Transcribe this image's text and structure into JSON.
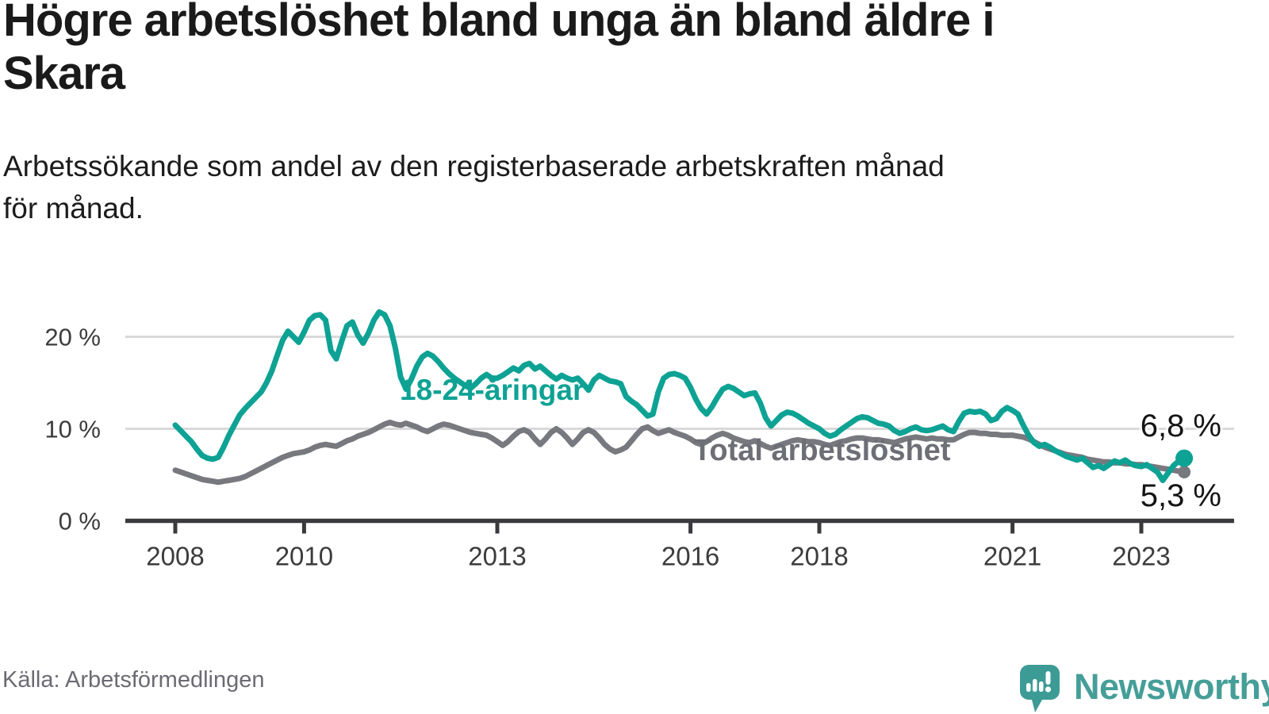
{
  "header": {
    "title": "Högre arbetslöshet bland unga än bland äldre i Skara",
    "title_lines": [
      "Högre arbetslöshet bland unga än bland äldre i",
      "Skara"
    ],
    "subtitle": "Arbetssökande som andel av den registerbaserade arbetskraften månad för månad.",
    "subtitle_lines": [
      "Arbetssökande som andel av den registerbaserade arbetskraften månad",
      "för månad."
    ]
  },
  "footer": {
    "source": "Källa: Arbetsförmedlingen"
  },
  "logo": {
    "brand": "Newsworthy",
    "icon": "newsworthy-speech-bubble-bar-chart-icon",
    "color": "#459e98"
  },
  "chart_data": {
    "type": "line",
    "title": "Högre arbetslöshet bland unga än bland äldre i Skara",
    "xlabel": "",
    "ylabel": "",
    "unit": "%",
    "frequency": "monthly",
    "x_start": "2008-01",
    "x_end": "2023-09",
    "ylim": [
      0,
      24
    ],
    "grid": "horizontal",
    "grid_values": [
      10,
      20
    ],
    "yticks": [
      {
        "value": 0,
        "label": "0 %"
      },
      {
        "value": 10,
        "label": "10 %"
      },
      {
        "value": 20,
        "label": "20 %"
      }
    ],
    "xticks": [
      {
        "value": 2008,
        "label": "2008"
      },
      {
        "value": 2010,
        "label": "2010"
      },
      {
        "value": 2013,
        "label": "2013"
      },
      {
        "value": 2016,
        "label": "2016"
      },
      {
        "value": 2018,
        "label": "2018"
      },
      {
        "value": 2021,
        "label": "2021"
      },
      {
        "value": 2023,
        "label": "2023"
      }
    ],
    "colors": {
      "grid": "#d9d9d9",
      "axis": "#3a3a3e",
      "tick_label": "#3c3c3c",
      "end_label": "#141414"
    },
    "series": [
      {
        "id": "total",
        "name": "Total arbetslöshet",
        "color": "#78787f",
        "label_color": "#6e6e77",
        "end_dot_radius": 8,
        "values": [
          5.5,
          5.3,
          5.1,
          4.9,
          4.7,
          4.5,
          4.4,
          4.3,
          4.2,
          4.3,
          4.4,
          4.5,
          4.6,
          4.8,
          5.1,
          5.4,
          5.7,
          6.0,
          6.3,
          6.6,
          6.9,
          7.1,
          7.3,
          7.4,
          7.5,
          7.7,
          8.0,
          8.2,
          8.3,
          8.2,
          8.1,
          8.4,
          8.7,
          8.9,
          9.2,
          9.4,
          9.6,
          9.9,
          10.2,
          10.5,
          10.7,
          10.5,
          10.4,
          10.6,
          10.4,
          10.2,
          9.9,
          9.7,
          10.0,
          10.3,
          10.5,
          10.4,
          10.2,
          10.0,
          9.8,
          9.6,
          9.5,
          9.4,
          9.3,
          9.0,
          8.6,
          8.2,
          8.6,
          9.2,
          9.7,
          9.9,
          9.6,
          8.9,
          8.3,
          8.9,
          9.6,
          10.0,
          9.6,
          9.0,
          8.3,
          8.9,
          9.6,
          9.9,
          9.6,
          9.0,
          8.3,
          7.8,
          7.5,
          7.7,
          8.0,
          8.7,
          9.4,
          10.0,
          10.2,
          9.8,
          9.5,
          9.7,
          9.9,
          9.6,
          9.4,
          9.2,
          8.9,
          8.5,
          8.3,
          8.6,
          9.0,
          9.3,
          9.5,
          9.3,
          9.0,
          8.8,
          8.6,
          8.5,
          8.7,
          8.4,
          8.1,
          7.9,
          8.1,
          8.3,
          8.5,
          8.7,
          8.8,
          8.7,
          8.6,
          8.6,
          8.5,
          8.3,
          8.2,
          8.4,
          8.6,
          8.7,
          8.9,
          9.0,
          9.0,
          8.9,
          8.8,
          8.8,
          8.7,
          8.6,
          8.5,
          8.7,
          8.9,
          9.0,
          9.1,
          9.0,
          8.9,
          9.0,
          8.9,
          8.9,
          8.8,
          8.8,
          9.1,
          9.4,
          9.6,
          9.6,
          9.5,
          9.5,
          9.4,
          9.4,
          9.3,
          9.3,
          9.3,
          9.2,
          9.1,
          8.9,
          8.6,
          8.3,
          8.0,
          7.8,
          7.6,
          7.4,
          7.2,
          7.1,
          7.0,
          6.9,
          6.7,
          6.6,
          6.5,
          6.4,
          6.4,
          6.3,
          6.3,
          6.2,
          6.2,
          6.1,
          6.1,
          6.0,
          5.9,
          5.8,
          5.7,
          5.6,
          5.5,
          5.4,
          5.3
        ]
      },
      {
        "id": "youth",
        "name": "18-24-åringar",
        "color": "#0da294",
        "label_color": "#0da294",
        "end_dot_radius": 11,
        "values": [
          10.4,
          9.8,
          9.2,
          8.6,
          7.8,
          7.1,
          6.8,
          6.7,
          6.9,
          8.0,
          9.3,
          10.4,
          11.5,
          12.2,
          12.8,
          13.4,
          14.0,
          15.0,
          16.3,
          18.0,
          19.6,
          20.6,
          20.0,
          19.4,
          20.5,
          21.8,
          22.3,
          22.4,
          21.8,
          18.5,
          17.6,
          19.5,
          21.2,
          21.6,
          20.2,
          19.3,
          20.4,
          21.8,
          22.7,
          22.4,
          21.2,
          18.8,
          15.6,
          14.3,
          15.4,
          16.8,
          17.8,
          18.2,
          17.9,
          17.3,
          16.6,
          16.0,
          15.5,
          15.1,
          14.7,
          14.4,
          14.9,
          15.5,
          15.9,
          15.5,
          15.5,
          15.8,
          16.2,
          16.6,
          16.3,
          16.9,
          17.1,
          16.5,
          16.8,
          16.3,
          15.8,
          15.4,
          15.8,
          15.5,
          15.3,
          15.5,
          14.9,
          14.2,
          15.3,
          15.8,
          15.5,
          15.2,
          15.1,
          14.9,
          13.5,
          13.0,
          12.6,
          12.0,
          11.4,
          11.6,
          14.0,
          15.5,
          15.9,
          16.0,
          15.8,
          15.5,
          14.5,
          13.2,
          12.2,
          11.6,
          12.4,
          13.4,
          14.3,
          14.6,
          14.4,
          14.0,
          13.6,
          13.8,
          13.9,
          12.8,
          11.2,
          10.3,
          10.9,
          11.5,
          11.8,
          11.7,
          11.4,
          11.0,
          10.6,
          10.3,
          10.0,
          9.5,
          9.2,
          9.4,
          9.9,
          10.3,
          10.7,
          11.1,
          11.3,
          11.2,
          10.9,
          10.6,
          10.5,
          10.3,
          9.8,
          9.5,
          9.7,
          10.0,
          10.2,
          9.9,
          9.8,
          9.9,
          10.1,
          10.3,
          9.9,
          9.7,
          10.8,
          11.7,
          11.9,
          11.8,
          11.9,
          11.6,
          10.9,
          11.1,
          11.9,
          12.3,
          12.0,
          11.6,
          10.4,
          9.3,
          8.5,
          8.1,
          8.3,
          8.0,
          7.6,
          7.3,
          7.0,
          6.8,
          6.6,
          6.8,
          6.3,
          5.8,
          6.0,
          5.7,
          6.1,
          6.5,
          6.3,
          6.6,
          6.2,
          6.0,
          5.9,
          6.1,
          5.7,
          5.3,
          4.4,
          5.2,
          6.0,
          6.5,
          6.8
        ]
      }
    ],
    "end_labels": [
      {
        "series": "youth",
        "text": "6,8 %"
      },
      {
        "series": "total",
        "text": "5,3 %"
      }
    ],
    "legend_position": "inline-labels"
  }
}
